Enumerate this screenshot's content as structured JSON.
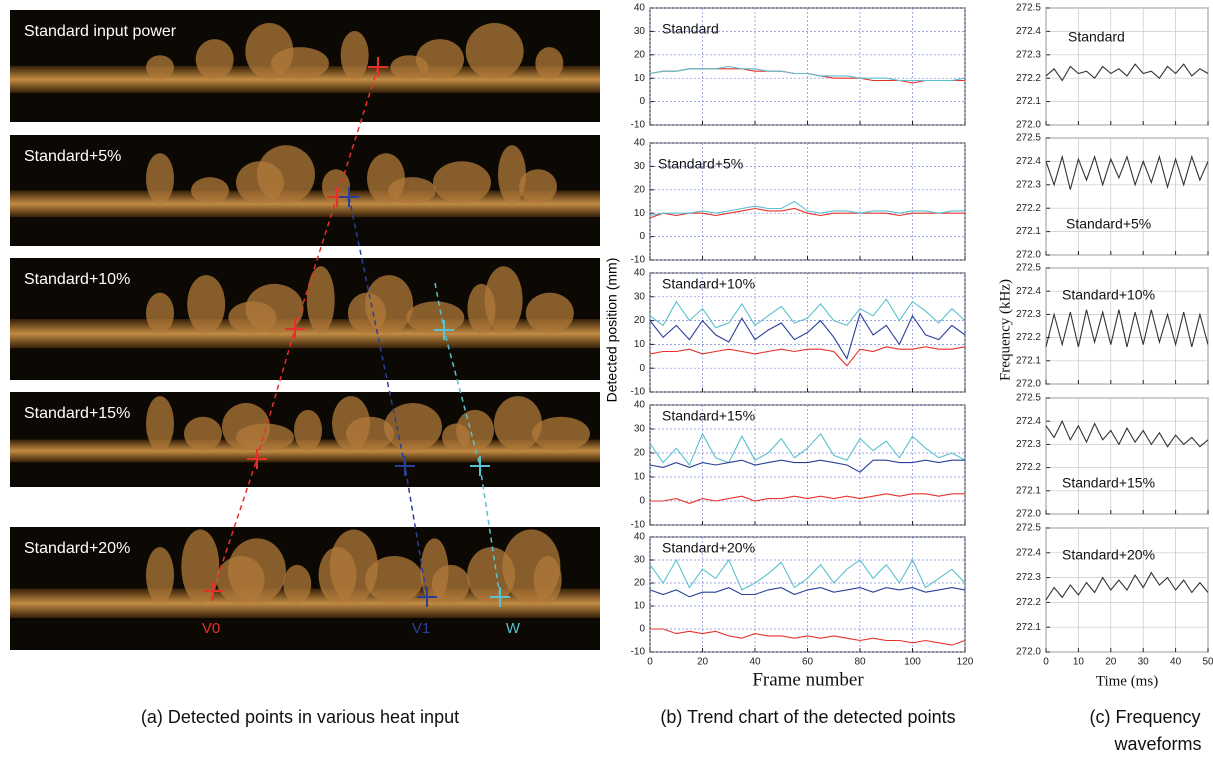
{
  "panel_a": {
    "labels": [
      "Standard input power",
      "Standard+5%",
      "Standard+10%",
      "Standard+15%",
      "Standard+20%"
    ],
    "points": [
      "V0",
      "V1",
      "W"
    ],
    "caption": "(a) Detected points in various heat input"
  },
  "panel_b": {
    "ylabel": "Detected position (mm)",
    "xlabel": "Frame number",
    "caption": "(b) Trend chart of the detected points"
  },
  "panel_c": {
    "ylabel": "Frequency (kHz)",
    "xlabel": "Time (ms)",
    "caption": [
      "(c) Frequency",
      "waveforms"
    ]
  },
  "chart_data": [
    {
      "type": "line",
      "title": "Standard",
      "grid": true,
      "show_xtick_labels": false,
      "x": [
        0,
        5,
        10,
        15,
        20,
        25,
        30,
        35,
        40,
        45,
        50,
        55,
        60,
        65,
        70,
        75,
        80,
        85,
        90,
        95,
        100,
        105,
        110,
        115,
        120
      ],
      "xlim": [
        0,
        120
      ],
      "xticks": [
        0,
        20,
        40,
        60,
        80,
        100,
        120
      ],
      "ylim": [
        -10,
        40
      ],
      "yticks": [
        -10,
        0,
        10,
        20,
        30,
        40
      ],
      "series": [
        {
          "color": "#e8302a",
          "values": [
            12,
            13,
            13,
            14,
            14,
            14,
            14,
            14,
            13,
            13,
            13,
            12,
            12,
            11,
            10,
            10,
            10,
            9,
            9,
            9,
            8,
            9,
            9,
            9,
            9
          ]
        },
        {
          "color": "#5bc0d0",
          "values": [
            12,
            13,
            13,
            14,
            14,
            14,
            15,
            14,
            14,
            13,
            13,
            12,
            12,
            11,
            11,
            11,
            10,
            10,
            10,
            9,
            9,
            9,
            9,
            9,
            10
          ]
        }
      ]
    },
    {
      "type": "line",
      "title": "Standard+5%",
      "grid": true,
      "show_xtick_labels": false,
      "x": [
        0,
        5,
        10,
        15,
        20,
        25,
        30,
        35,
        40,
        45,
        50,
        55,
        60,
        65,
        70,
        75,
        80,
        85,
        90,
        95,
        100,
        105,
        110,
        115,
        120
      ],
      "xlim": [
        0,
        120
      ],
      "xticks": [
        0,
        20,
        40,
        60,
        80,
        100,
        120
      ],
      "ylim": [
        -10,
        40
      ],
      "yticks": [
        -10,
        0,
        10,
        20,
        30,
        40
      ],
      "series": [
        {
          "color": "#e8302a",
          "values": [
            8,
            10,
            9,
            10,
            10,
            9,
            10,
            11,
            12,
            11,
            11,
            12,
            10,
            9,
            10,
            10,
            10,
            10,
            10,
            9,
            10,
            10,
            10,
            10,
            10
          ]
        },
        {
          "color": "#5bc0d0",
          "values": [
            9,
            10,
            10,
            10,
            11,
            10,
            11,
            12,
            13,
            12,
            12,
            15,
            11,
            10,
            11,
            11,
            10,
            11,
            11,
            10,
            11,
            11,
            10,
            11,
            11
          ]
        }
      ]
    },
    {
      "type": "line",
      "title": "Standard+10%",
      "grid": true,
      "show_xtick_labels": false,
      "x": [
        0,
        5,
        10,
        15,
        20,
        25,
        30,
        35,
        40,
        45,
        50,
        55,
        60,
        65,
        70,
        75,
        80,
        85,
        90,
        95,
        100,
        105,
        110,
        115,
        120
      ],
      "xlim": [
        0,
        120
      ],
      "xticks": [
        0,
        20,
        40,
        60,
        80,
        100,
        120
      ],
      "ylim": [
        -10,
        40
      ],
      "yticks": [
        -10,
        0,
        10,
        20,
        30,
        40
      ],
      "series": [
        {
          "color": "#e8302a",
          "values": [
            6,
            7,
            7,
            8,
            6,
            7,
            8,
            7,
            6,
            7,
            8,
            7,
            8,
            8,
            7,
            1,
            8,
            7,
            9,
            8,
            8,
            9,
            8,
            8,
            9
          ]
        },
        {
          "color": "#5bc0d0",
          "values": [
            22,
            18,
            28,
            20,
            25,
            17,
            19,
            27,
            18,
            22,
            26,
            19,
            21,
            27,
            20,
            18,
            25,
            22,
            29,
            20,
            28,
            24,
            19,
            25,
            20
          ]
        },
        {
          "color": "#2a3f9a",
          "values": [
            20,
            13,
            18,
            12,
            20,
            14,
            11,
            21,
            12,
            16,
            19,
            12,
            15,
            20,
            13,
            4,
            23,
            14,
            18,
            10,
            22,
            14,
            12,
            18,
            14
          ]
        }
      ]
    },
    {
      "type": "line",
      "title": "Standard+15%",
      "grid": true,
      "show_xtick_labels": false,
      "x": [
        0,
        5,
        10,
        15,
        20,
        25,
        30,
        35,
        40,
        45,
        50,
        55,
        60,
        65,
        70,
        75,
        80,
        85,
        90,
        95,
        100,
        105,
        110,
        115,
        120
      ],
      "xlim": [
        0,
        120
      ],
      "xticks": [
        0,
        20,
        40,
        60,
        80,
        100,
        120
      ],
      "ylim": [
        -10,
        40
      ],
      "yticks": [
        -10,
        0,
        10,
        20,
        30,
        40
      ],
      "series": [
        {
          "color": "#e8302a",
          "values": [
            0,
            0,
            1,
            -1,
            1,
            0,
            1,
            2,
            0,
            1,
            1,
            2,
            1,
            2,
            1,
            2,
            1,
            2,
            3,
            2,
            3,
            3,
            2,
            3,
            3
          ]
        },
        {
          "color": "#5bc0d0",
          "values": [
            24,
            16,
            22,
            15,
            28,
            18,
            16,
            27,
            17,
            20,
            26,
            18,
            22,
            28,
            19,
            17,
            26,
            21,
            25,
            18,
            27,
            22,
            18,
            20,
            17
          ]
        },
        {
          "color": "#2a3f9a",
          "values": [
            15,
            14,
            16,
            14,
            16,
            15,
            16,
            17,
            15,
            16,
            17,
            16,
            16,
            17,
            16,
            15,
            12,
            17,
            17,
            16,
            16,
            17,
            16,
            17,
            17
          ]
        }
      ]
    },
    {
      "type": "line",
      "title": "Standard+20%",
      "grid": true,
      "show_xtick_labels": true,
      "x": [
        0,
        5,
        10,
        15,
        20,
        25,
        30,
        35,
        40,
        45,
        50,
        55,
        60,
        65,
        70,
        75,
        80,
        85,
        90,
        95,
        100,
        105,
        110,
        115,
        120
      ],
      "xlim": [
        0,
        120
      ],
      "xticks": [
        0,
        20,
        40,
        60,
        80,
        100,
        120
      ],
      "ylim": [
        -10,
        40
      ],
      "yticks": [
        -10,
        0,
        10,
        20,
        30,
        40
      ],
      "series": [
        {
          "color": "#e8302a",
          "values": [
            0,
            0,
            -2,
            -1,
            -2,
            -1,
            -3,
            -4,
            -2,
            -3,
            -3,
            -4,
            -3,
            -4,
            -3,
            -4,
            -5,
            -4,
            -5,
            -5,
            -6,
            -5,
            -6,
            -7,
            -5
          ]
        },
        {
          "color": "#5bc0d0",
          "values": [
            28,
            20,
            30,
            18,
            26,
            22,
            30,
            17,
            20,
            24,
            29,
            18,
            22,
            28,
            20,
            26,
            30,
            22,
            28,
            20,
            30,
            18,
            22,
            26,
            20
          ]
        },
        {
          "color": "#2a3f9a",
          "values": [
            17,
            15,
            17,
            14,
            16,
            16,
            18,
            15,
            15,
            17,
            18,
            15,
            17,
            18,
            16,
            17,
            18,
            16,
            18,
            17,
            18,
            16,
            17,
            18,
            17
          ]
        }
      ]
    },
    {
      "type": "line",
      "title": "Standard",
      "grid": true,
      "show_xtick_labels": false,
      "x": [
        0,
        2.5,
        5,
        7.5,
        10,
        12.5,
        15,
        17.5,
        20,
        22.5,
        25,
        27.5,
        30,
        32.5,
        35,
        37.5,
        40,
        42.5,
        45,
        47.5,
        50
      ],
      "xlim": [
        0,
        50
      ],
      "xticks": [
        0,
        10,
        20,
        30,
        40,
        50
      ],
      "ylim": [
        272.0,
        272.5
      ],
      "yticks": [
        {
          "value": 272.0,
          "label": "272.0"
        },
        272.1,
        272.2,
        272.3,
        272.4,
        272.5
      ],
      "series": [
        {
          "color": "#333333",
          "values": [
            272.21,
            272.24,
            272.19,
            272.25,
            272.22,
            272.23,
            272.2,
            272.25,
            272.22,
            272.24,
            272.21,
            272.26,
            272.22,
            272.23,
            272.2,
            272.25,
            272.22,
            272.26,
            272.21,
            272.24,
            272.22
          ]
        }
      ]
    },
    {
      "type": "line",
      "title": "Standard+5%",
      "grid": true,
      "show_xtick_labels": false,
      "x": [
        0,
        2.5,
        5,
        7.5,
        10,
        12.5,
        15,
        17.5,
        20,
        22.5,
        25,
        27.5,
        30,
        32.5,
        35,
        37.5,
        40,
        42.5,
        45,
        47.5,
        50
      ],
      "xlim": [
        0,
        50
      ],
      "xticks": [
        0,
        10,
        20,
        30,
        40,
        50
      ],
      "ylim": [
        272.0,
        272.5
      ],
      "yticks": [
        {
          "value": 272.0,
          "label": "272.0"
        },
        272.1,
        272.2,
        272.3,
        272.4,
        272.5
      ],
      "series": [
        {
          "color": "#333333",
          "values": [
            272.4,
            272.3,
            272.42,
            272.28,
            272.41,
            272.32,
            272.42,
            272.3,
            272.41,
            272.33,
            272.42,
            272.3,
            272.4,
            272.31,
            272.42,
            272.29,
            272.41,
            272.3,
            272.42,
            272.32,
            272.4
          ]
        }
      ]
    },
    {
      "type": "line",
      "title": "Standard+10%",
      "grid": true,
      "show_xtick_labels": false,
      "x": [
        0,
        2.5,
        5,
        7.5,
        10,
        12.5,
        15,
        17.5,
        20,
        22.5,
        25,
        27.5,
        30,
        32.5,
        35,
        37.5,
        40,
        42.5,
        45,
        47.5,
        50
      ],
      "xlim": [
        0,
        50
      ],
      "xticks": [
        0,
        10,
        20,
        30,
        40,
        50
      ],
      "ylim": [
        272.0,
        272.5
      ],
      "yticks": [
        {
          "value": 272.0,
          "label": "272.0"
        },
        272.1,
        272.2,
        272.3,
        272.4,
        272.5
      ],
      "series": [
        {
          "color": "#333333",
          "values": [
            272.16,
            272.3,
            272.17,
            272.31,
            272.16,
            272.32,
            272.18,
            272.31,
            272.17,
            272.32,
            272.16,
            272.31,
            272.17,
            272.32,
            272.18,
            272.3,
            272.17,
            272.31,
            272.16,
            272.3,
            272.17
          ]
        }
      ]
    },
    {
      "type": "line",
      "title": "Standard+15%",
      "grid": true,
      "show_xtick_labels": false,
      "x": [
        0,
        2.5,
        5,
        7.5,
        10,
        12.5,
        15,
        17.5,
        20,
        22.5,
        25,
        27.5,
        30,
        32.5,
        35,
        37.5,
        40,
        42.5,
        45,
        47.5,
        50
      ],
      "xlim": [
        0,
        50
      ],
      "xticks": [
        0,
        10,
        20,
        30,
        40,
        50
      ],
      "ylim": [
        272.0,
        272.5
      ],
      "yticks": [
        {
          "value": 272.0,
          "label": "272.0"
        },
        272.1,
        272.2,
        272.3,
        272.4,
        272.5
      ],
      "series": [
        {
          "color": "#333333",
          "values": [
            272.38,
            272.33,
            272.4,
            272.32,
            272.38,
            272.31,
            272.39,
            272.32,
            272.36,
            272.3,
            272.37,
            272.31,
            272.36,
            272.3,
            272.35,
            272.29,
            272.34,
            272.3,
            272.33,
            272.29,
            272.32
          ]
        }
      ]
    },
    {
      "type": "line",
      "title": "Standard+20%",
      "grid": true,
      "show_xtick_labels": true,
      "x": [
        0,
        2.5,
        5,
        7.5,
        10,
        12.5,
        15,
        17.5,
        20,
        22.5,
        25,
        27.5,
        30,
        32.5,
        35,
        37.5,
        40,
        42.5,
        45,
        47.5,
        50
      ],
      "xlim": [
        0,
        50
      ],
      "xticks": [
        0,
        10,
        20,
        30,
        40,
        50
      ],
      "ylim": [
        272.0,
        272.5
      ],
      "yticks": [
        {
          "value": 272.0,
          "label": "272.0"
        },
        272.1,
        272.2,
        272.3,
        272.4,
        272.5
      ],
      "series": [
        {
          "color": "#333333",
          "values": [
            272.21,
            272.26,
            272.22,
            272.27,
            272.23,
            272.28,
            272.24,
            272.3,
            272.25,
            272.29,
            272.25,
            272.31,
            272.26,
            272.32,
            272.27,
            272.3,
            272.25,
            272.29,
            272.24,
            272.28,
            272.24
          ]
        }
      ]
    }
  ]
}
